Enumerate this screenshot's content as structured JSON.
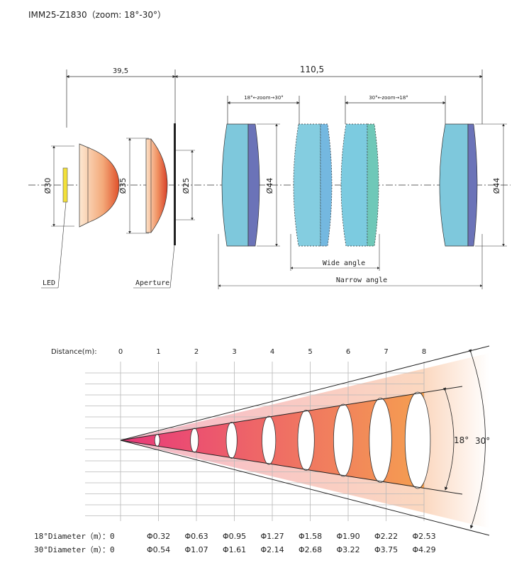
{
  "title": "IMM25-Z1830（zoom: 18°-30°）",
  "optics": {
    "dim_led_to_aperture": "39,5",
    "dim_aperture_to_end": "110,5",
    "zoom_left_label": "18°←zoom→30°",
    "zoom_right_label": "30°←zoom→18°",
    "diam_led": "Ø30",
    "diam_lens2": "Ø35",
    "diam_aperture": "Ø25",
    "diam_lens_group": "Ø44",
    "diam_end": "Ø44",
    "label_led": "LED",
    "label_aperture": "Aperture",
    "label_wide": "Wide angle",
    "label_narrow": "Narrow angle"
  },
  "beam": {
    "distance_label": "Distance(m):",
    "distances": [
      "0",
      "1",
      "2",
      "3",
      "4",
      "5",
      "6",
      "7",
      "8"
    ],
    "narrow_angle_label": "18°",
    "wide_angle_label": "30°",
    "row18_label": "18°Diameter（m）：0",
    "row30_label": "30°Diameter（m）：0",
    "d18": [
      "Φ0.32",
      "Φ0.63",
      "Φ0.95",
      "Φ1.27",
      "Φ1.58",
      "Φ1.90",
      "Φ2.22",
      "Φ2.53"
    ],
    "d30": [
      "Φ0.54",
      "Φ1.07",
      "Φ1.61",
      "Φ2.14",
      "Φ2.68",
      "Φ3.22",
      "Φ3.75",
      "Φ4.29"
    ],
    "colors": {
      "near": "#e8387a",
      "far": "#f5a050",
      "fade": "#fbe3cf"
    }
  }
}
